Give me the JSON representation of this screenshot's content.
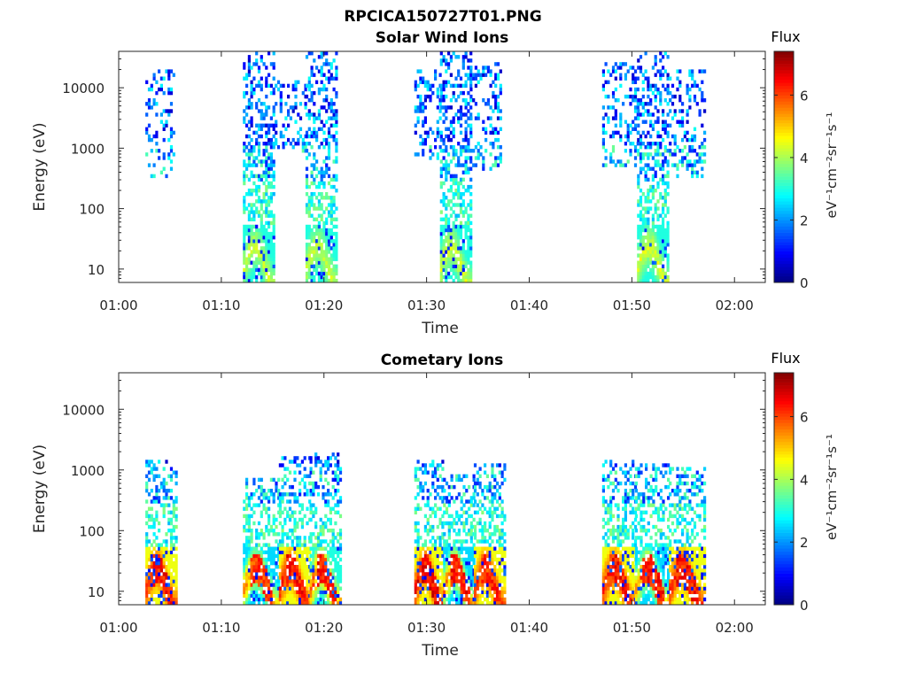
{
  "figure_title": "RPCICA150727T01.PNG",
  "chart_data": [
    {
      "type": "heatmap",
      "title": "Solar Wind Ions",
      "xlabel": "Time",
      "ylabel": "Energy (eV)",
      "y_scale": "log",
      "ylim": [
        6,
        40000
      ],
      "xlim": [
        "01:00",
        "02:03"
      ],
      "x_ticks": [
        "01:00",
        "01:10",
        "01:20",
        "01:30",
        "01:40",
        "01:50",
        "02:00"
      ],
      "y_ticks": [
        "10",
        "100",
        "1000",
        "10000"
      ],
      "colorbar": {
        "title": "Flux",
        "label": "eV⁻¹cm⁻²sr⁻¹s⁻¹",
        "ticks": [
          "0",
          "2",
          "4",
          "6"
        ],
        "range": [
          0,
          7.4
        ],
        "colormap": "jet"
      },
      "bursts": [
        {
          "start": "01:02.6",
          "end": "01:05.4",
          "emin": 300,
          "emax": 20000,
          "low": 0,
          "lowhi": 0,
          "peak": 0
        },
        {
          "start": "01:12.1",
          "end": "01:15.2",
          "emin": 6,
          "emax": 35000,
          "low": 3.0,
          "lowhi": 4.8,
          "peak": 4.6
        },
        {
          "start": "01:15.2",
          "end": "01:18.2",
          "emin": 800,
          "emax": 12000,
          "low": 0,
          "lowhi": 0,
          "peak": 0
        },
        {
          "start": "01:18.2",
          "end": "01:21.3",
          "emin": 6,
          "emax": 35000,
          "low": 3.0,
          "lowhi": 4.8,
          "peak": 4.6
        },
        {
          "start": "01:28.8",
          "end": "01:31.3",
          "emin": 600,
          "emax": 20000,
          "low": 0,
          "lowhi": 0,
          "peak": 0
        },
        {
          "start": "01:31.3",
          "end": "01:34.2",
          "emin": 6,
          "emax": 35000,
          "low": 3.0,
          "lowhi": 4.8,
          "peak": 4.8
        },
        {
          "start": "01:34.2",
          "end": "01:37.2",
          "emin": 400,
          "emax": 25000,
          "low": 0,
          "lowhi": 0,
          "peak": 0
        },
        {
          "start": "01:47.1",
          "end": "01:50.5",
          "emin": 500,
          "emax": 25000,
          "low": 0,
          "lowhi": 0,
          "peak": 0
        },
        {
          "start": "01:50.5",
          "end": "01:53.6",
          "emin": 6,
          "emax": 35000,
          "low": 3.0,
          "lowhi": 4.8,
          "peak": 4.8
        },
        {
          "start": "01:53.6",
          "end": "01:57.0",
          "emin": 300,
          "emax": 20000,
          "low": 0,
          "lowhi": 0,
          "peak": 0
        }
      ]
    },
    {
      "type": "heatmap",
      "title": "Cometary Ions",
      "xlabel": "Time",
      "ylabel": "Energy (eV)",
      "y_scale": "log",
      "ylim": [
        6,
        40000
      ],
      "xlim": [
        "01:00",
        "02:03"
      ],
      "x_ticks": [
        "01:00",
        "01:10",
        "01:20",
        "01:30",
        "01:40",
        "01:50",
        "02:00"
      ],
      "y_ticks": [
        "10",
        "100",
        "1000",
        "10000"
      ],
      "colorbar": {
        "title": "Flux",
        "label": "eV⁻¹cm⁻²sr⁻¹s⁻¹",
        "ticks": [
          "0",
          "2",
          "4",
          "6"
        ],
        "range": [
          0,
          7.4
        ],
        "colormap": "jet"
      },
      "bursts": [
        {
          "start": "01:02.6",
          "end": "01:05.6",
          "emin": 6,
          "emax": 1300,
          "low": 4.5,
          "lowhi": 6.8,
          "peak": 6.8
        },
        {
          "start": "01:12.1",
          "end": "01:15.6",
          "emin": 6,
          "emax": 700,
          "low": 2.5,
          "lowhi": 6.5,
          "peak": 6.5
        },
        {
          "start": "01:15.6",
          "end": "01:18.6",
          "emin": 6,
          "emax": 1500,
          "low": 4.5,
          "lowhi": 6.8,
          "peak": 6.8
        },
        {
          "start": "01:18.6",
          "end": "01:21.6",
          "emin": 6,
          "emax": 1700,
          "low": 3.0,
          "lowhi": 6.8,
          "peak": 6.8
        },
        {
          "start": "01:28.8",
          "end": "01:31.6",
          "emin": 6,
          "emax": 1300,
          "low": 4.5,
          "lowhi": 7.0,
          "peak": 7.0
        },
        {
          "start": "01:31.6",
          "end": "01:34.6",
          "emin": 6,
          "emax": 800,
          "low": 2.5,
          "lowhi": 6.8,
          "peak": 6.8
        },
        {
          "start": "01:34.6",
          "end": "01:37.6",
          "emin": 6,
          "emax": 1200,
          "low": 4.5,
          "lowhi": 6.6,
          "peak": 6.6
        },
        {
          "start": "01:47.1",
          "end": "01:50.3",
          "emin": 6,
          "emax": 1300,
          "low": 4.5,
          "lowhi": 6.8,
          "peak": 6.8
        },
        {
          "start": "01:50.3",
          "end": "01:53.6",
          "emin": 6,
          "emax": 1200,
          "low": 2.5,
          "lowhi": 6.8,
          "peak": 6.8
        },
        {
          "start": "01:53.6",
          "end": "01:57.0",
          "emin": 6,
          "emax": 1100,
          "low": 4.5,
          "lowhi": 6.8,
          "peak": 6.8
        }
      ]
    }
  ]
}
